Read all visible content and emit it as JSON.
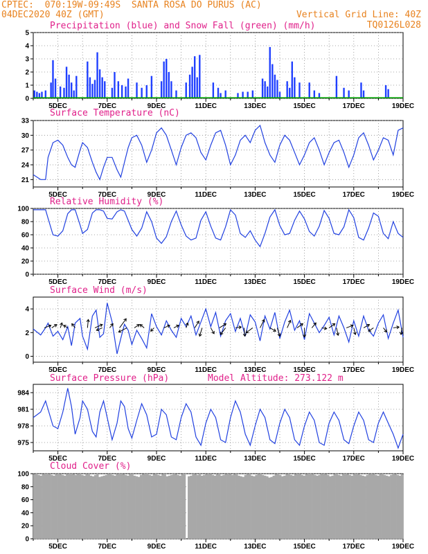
{
  "header": {
    "line1_left": "CPTEC:  070:19W-09:49S  SANTA ROSA DO PURUS (AC)",
    "line2_left": "04DEC2020 40Z (GMT)",
    "line2_right": "Vertical Grid Line: 40Z",
    "line3_right": "TQ0126L028"
  },
  "x_tick_labels": [
    "5DEC",
    "7DEC",
    "9DEC",
    "11DEC",
    "13DEC",
    "15DEC",
    "17DEC",
    "19DEC"
  ],
  "colors": {
    "precip": "#2040ff",
    "snow": "#00a000",
    "line": "#2040e0",
    "cloud": "#a8a8a8",
    "title": "#e0208a",
    "header": "#e8821e"
  },
  "chart_data": [
    {
      "type": "bar",
      "title": "Precipitation (blue) and Snow Fall (green) (mm/h)",
      "ylim": [
        0,
        5
      ],
      "yticks": [
        "0",
        "1",
        "2",
        "3",
        "4",
        "5"
      ],
      "xlim": [
        4.0,
        19.0
      ],
      "series": [
        {
          "name": "Precipitation",
          "x": [
            4.05,
            4.15,
            4.25,
            4.35,
            4.5,
            4.72,
            4.8,
            4.9,
            5.1,
            5.25,
            5.35,
            5.45,
            5.55,
            5.65,
            5.75,
            6.2,
            6.3,
            6.4,
            6.5,
            6.6,
            6.7,
            6.8,
            6.9,
            7.2,
            7.3,
            7.45,
            7.6,
            7.75,
            7.85,
            8.2,
            8.4,
            8.6,
            8.8,
            9.2,
            9.3,
            9.4,
            9.5,
            9.6,
            9.8,
            10.2,
            10.35,
            10.45,
            10.55,
            10.65,
            10.75,
            11.3,
            11.5,
            11.6,
            11.8,
            12.3,
            12.5,
            12.7,
            12.9,
            13.3,
            13.4,
            13.5,
            13.6,
            13.7,
            13.8,
            13.9,
            14.0,
            14.3,
            14.4,
            14.5,
            14.6,
            14.8,
            15.2,
            15.4,
            15.6,
            16.3,
            16.6,
            16.8,
            17.3,
            17.4,
            18.3,
            18.4
          ],
          "values": [
            0.6,
            0.5,
            0.4,
            0.5,
            0.6,
            1.2,
            2.9,
            1.5,
            0.9,
            0.8,
            2.4,
            1.8,
            1.2,
            0.6,
            1.7,
            2.8,
            1.6,
            1.1,
            1.4,
            3.5,
            2.2,
            1.6,
            1.3,
            0.8,
            2.0,
            1.3,
            1.0,
            0.9,
            1.5,
            1.2,
            0.8,
            1.0,
            1.7,
            1.3,
            2.8,
            3.0,
            2.0,
            1.3,
            0.6,
            1.2,
            1.8,
            2.4,
            3.2,
            1.6,
            3.3,
            1.2,
            0.8,
            0.4,
            0.6,
            0.4,
            0.5,
            0.5,
            0.6,
            1.5,
            1.3,
            0.9,
            3.9,
            2.6,
            1.8,
            1.4,
            0.5,
            1.3,
            0.8,
            2.8,
            1.6,
            1.2,
            1.2,
            0.6,
            0.4,
            1.7,
            0.8,
            0.6,
            1.2,
            0.6,
            1.0,
            0.7
          ]
        },
        {
          "name": "Snow Fall",
          "x": [
            4.0,
            19.0
          ],
          "values": [
            0,
            0
          ]
        }
      ]
    },
    {
      "type": "line",
      "title": "Surface Temperature (nC)",
      "ylim": [
        19.5,
        33
      ],
      "yticks": [
        "21",
        "24",
        "27",
        "30",
        "33"
      ],
      "x": [
        4.0,
        4.3,
        4.5,
        4.6,
        4.8,
        5.0,
        5.2,
        5.4,
        5.55,
        5.7,
        5.9,
        6.0,
        6.2,
        6.4,
        6.55,
        6.7,
        6.85,
        7.0,
        7.2,
        7.4,
        7.55,
        7.7,
        7.85,
        8.0,
        8.2,
        8.4,
        8.6,
        8.8,
        9.0,
        9.2,
        9.4,
        9.6,
        9.8,
        10.0,
        10.2,
        10.4,
        10.6,
        10.8,
        11.0,
        11.2,
        11.4,
        11.6,
        11.8,
        12.0,
        12.2,
        12.4,
        12.6,
        12.8,
        13.0,
        13.2,
        13.4,
        13.6,
        13.8,
        14.0,
        14.2,
        14.4,
        14.6,
        14.8,
        15.0,
        15.2,
        15.4,
        15.6,
        15.8,
        16.0,
        16.2,
        16.4,
        16.6,
        16.8,
        17.0,
        17.2,
        17.4,
        17.6,
        17.8,
        18.0,
        18.2,
        18.4,
        18.6,
        18.8,
        19.0
      ],
      "values": [
        22.0,
        21.0,
        21.0,
        25.5,
        28.5,
        29.0,
        28.0,
        25.5,
        24.0,
        23.5,
        27.0,
        28.5,
        27.5,
        24.5,
        22.5,
        21.0,
        23.5,
        25.5,
        25.5,
        23.0,
        21.5,
        24.5,
        27.5,
        29.5,
        30.0,
        28.0,
        24.5,
        27.0,
        30.5,
        31.5,
        30.0,
        27.0,
        24.0,
        27.5,
        30.0,
        30.5,
        29.5,
        26.5,
        25.0,
        28.0,
        30.5,
        31.0,
        28.0,
        24.0,
        26.0,
        29.0,
        30.0,
        28.5,
        31.0,
        32.0,
        28.5,
        26.0,
        24.5,
        28.0,
        30.0,
        29.0,
        26.5,
        24.0,
        26.0,
        28.5,
        29.5,
        27.0,
        24.0,
        26.5,
        28.5,
        29.0,
        26.5,
        23.5,
        26.0,
        29.5,
        30.5,
        28.0,
        25.0,
        27.0,
        29.5,
        29.0,
        26.0,
        31.0,
        31.5
      ]
    },
    {
      "type": "line",
      "title": "Relative Humidity (%)",
      "ylim": [
        0,
        100
      ],
      "yticks": [
        "0",
        "20",
        "40",
        "60",
        "80",
        "100"
      ],
      "x": [
        4.0,
        4.3,
        4.5,
        4.6,
        4.8,
        5.0,
        5.2,
        5.4,
        5.55,
        5.7,
        5.9,
        6.0,
        6.2,
        6.4,
        6.55,
        6.7,
        6.85,
        7.0,
        7.2,
        7.4,
        7.55,
        7.7,
        7.85,
        8.0,
        8.2,
        8.4,
        8.6,
        8.8,
        9.0,
        9.2,
        9.4,
        9.6,
        9.8,
        10.0,
        10.2,
        10.4,
        10.6,
        10.8,
        11.0,
        11.2,
        11.4,
        11.6,
        11.8,
        12.0,
        12.2,
        12.4,
        12.6,
        12.8,
        13.0,
        13.2,
        13.4,
        13.6,
        13.8,
        14.0,
        14.2,
        14.4,
        14.6,
        14.8,
        15.0,
        15.2,
        15.4,
        15.6,
        15.8,
        16.0,
        16.2,
        16.4,
        16.6,
        16.8,
        17.0,
        17.2,
        17.4,
        17.6,
        17.8,
        18.0,
        18.2,
        18.4,
        18.6,
        18.8,
        19.0
      ],
      "values": [
        98,
        98,
        98,
        85,
        60,
        58,
        66,
        92,
        98,
        98,
        75,
        62,
        68,
        93,
        98,
        98,
        96,
        85,
        84,
        95,
        98,
        96,
        82,
        68,
        58,
        70,
        95,
        80,
        55,
        47,
        57,
        80,
        96,
        75,
        58,
        52,
        55,
        82,
        95,
        73,
        55,
        52,
        72,
        98,
        90,
        62,
        56,
        66,
        52,
        42,
        62,
        87,
        98,
        74,
        60,
        62,
        82,
        96,
        84,
        65,
        58,
        73,
        97,
        85,
        62,
        60,
        72,
        98,
        86,
        56,
        52,
        70,
        93,
        88,
        62,
        54,
        80,
        62,
        56
      ]
    },
    {
      "type": "line",
      "title": "Surface Wind (m/s)",
      "ylim": [
        -0.5,
        5
      ],
      "yticks": [
        "0",
        "2",
        "4"
      ],
      "x": [
        4.0,
        4.3,
        4.5,
        4.6,
        4.8,
        5.0,
        5.2,
        5.4,
        5.55,
        5.7,
        5.9,
        6.0,
        6.2,
        6.4,
        6.55,
        6.7,
        6.85,
        7.0,
        7.2,
        7.4,
        7.55,
        7.7,
        7.85,
        8.0,
        8.2,
        8.4,
        8.6,
        8.8,
        9.0,
        9.2,
        9.4,
        9.6,
        9.8,
        10.0,
        10.2,
        10.4,
        10.6,
        10.8,
        11.0,
        11.2,
        11.4,
        11.6,
        11.8,
        12.0,
        12.2,
        12.4,
        12.6,
        12.8,
        13.0,
        13.2,
        13.4,
        13.6,
        13.8,
        14.0,
        14.2,
        14.4,
        14.6,
        14.8,
        15.0,
        15.2,
        15.4,
        15.6,
        15.8,
        16.0,
        16.2,
        16.4,
        16.6,
        16.8,
        17.0,
        17.2,
        17.4,
        17.6,
        17.8,
        18.0,
        18.2,
        18.4,
        18.6,
        18.8,
        19.0
      ],
      "values": [
        2.3,
        1.8,
        2.4,
        2.8,
        1.7,
        2.1,
        1.4,
        2.5,
        0.9,
        2.8,
        3.2,
        1.7,
        0.6,
        3.4,
        3.9,
        1.6,
        1.9,
        4.5,
        2.9,
        0.2,
        1.5,
        2.7,
        2.2,
        1.0,
        2.2,
        1.5,
        0.7,
        3.6,
        2.5,
        1.8,
        3.0,
        2.2,
        1.6,
        3.2,
        2.5,
        3.4,
        1.8,
        2.9,
        4.0,
        2.5,
        3.7,
        1.7,
        3.0,
        3.6,
        2.1,
        3.2,
        1.7,
        3.5,
        2.9,
        1.3,
        3.4,
        2.3,
        3.7,
        1.5,
        2.9,
        3.9,
        2.2,
        3.0,
        1.4,
        3.6,
        2.8,
        2.0,
        2.6,
        3.3,
        1.8,
        3.4,
        2.4,
        1.2,
        3.0,
        1.7,
        3.4,
        2.2,
        1.7,
        2.8,
        3.5,
        1.5,
        2.8,
        3.9,
        1.6
      ],
      "vectors": [
        {
          "x": 4.45,
          "u": 0.8,
          "v": 0.3
        },
        {
          "x": 4.75,
          "u": 0.6,
          "v": 0.4
        },
        {
          "x": 5.1,
          "u": 0.2,
          "v": 0.6
        },
        {
          "x": 5.4,
          "u": -0.5,
          "v": 0.3
        },
        {
          "x": 5.7,
          "u": -0.4,
          "v": 0.5
        },
        {
          "x": 6.2,
          "u": 0.1,
          "v": 1.0
        },
        {
          "x": 6.5,
          "u": 0.9,
          "v": 0.4
        },
        {
          "x": 6.8,
          "u": -0.7,
          "v": -0.3
        },
        {
          "x": 7.1,
          "u": 0.4,
          "v": 0.5
        },
        {
          "x": 7.5,
          "u": 0.8,
          "v": 1.1
        },
        {
          "x": 7.8,
          "u": -1.0,
          "v": -0.5
        },
        {
          "x": 8.1,
          "u": 0.6,
          "v": 0.4
        },
        {
          "x": 8.5,
          "u": -0.5,
          "v": 0.4
        },
        {
          "x": 8.9,
          "u": -0.4,
          "v": -0.4
        },
        {
          "x": 9.3,
          "u": 0.7,
          "v": 0.3
        },
        {
          "x": 9.7,
          "u": 0.6,
          "v": 0.3
        },
        {
          "x": 10.2,
          "u": 0.2,
          "v": 0.6
        },
        {
          "x": 10.55,
          "u": 0.5,
          "v": 0.8
        },
        {
          "x": 10.85,
          "u": -0.3,
          "v": -1.0
        },
        {
          "x": 11.2,
          "u": 0.4,
          "v": -0.7
        },
        {
          "x": 11.55,
          "u": 0.8,
          "v": 0.5
        },
        {
          "x": 11.8,
          "u": -0.6,
          "v": -0.8
        },
        {
          "x": 12.2,
          "u": 0.7,
          "v": 0.1
        },
        {
          "x": 12.55,
          "u": 0.1,
          "v": -1.0
        },
        {
          "x": 12.9,
          "u": -0.8,
          "v": -0.6
        },
        {
          "x": 13.2,
          "u": 0.5,
          "v": 1.0
        },
        {
          "x": 13.6,
          "u": 0.7,
          "v": -0.4
        },
        {
          "x": 13.9,
          "u": 0.3,
          "v": -1.0
        },
        {
          "x": 14.3,
          "u": 0.4,
          "v": 0.9
        },
        {
          "x": 14.7,
          "u": 0.7,
          "v": 0.5
        },
        {
          "x": 15.0,
          "u": 0.0,
          "v": -1.1
        },
        {
          "x": 15.3,
          "u": 0.5,
          "v": 0.6
        },
        {
          "x": 15.7,
          "u": 0.6,
          "v": -0.1
        },
        {
          "x": 16.0,
          "u": 0.7,
          "v": 0.5
        },
        {
          "x": 16.3,
          "u": 0.2,
          "v": -0.9
        },
        {
          "x": 16.7,
          "u": 0.8,
          "v": 0.3
        },
        {
          "x": 17.0,
          "u": 0.2,
          "v": -0.8
        },
        {
          "x": 17.4,
          "u": 0.7,
          "v": 0.4
        },
        {
          "x": 17.8,
          "u": -0.6,
          "v": -0.4
        },
        {
          "x": 18.2,
          "u": 0.4,
          "v": -0.5
        },
        {
          "x": 18.6,
          "u": 0.7,
          "v": 0.1
        },
        {
          "x": 18.95,
          "u": -0.1,
          "v": -0.8
        }
      ]
    },
    {
      "type": "line",
      "title": "Surface Pressure (hPa)",
      "annotation": "Model Altitude: 273.122 m",
      "ylim": [
        973.5,
        985.5
      ],
      "yticks": [
        "975",
        "978",
        "981",
        "984"
      ],
      "x": [
        4.0,
        4.3,
        4.5,
        4.6,
        4.8,
        5.0,
        5.2,
        5.4,
        5.55,
        5.7,
        5.9,
        6.0,
        6.2,
        6.4,
        6.55,
        6.7,
        6.85,
        7.0,
        7.2,
        7.4,
        7.55,
        7.7,
        7.85,
        8.0,
        8.2,
        8.4,
        8.6,
        8.8,
        9.0,
        9.2,
        9.4,
        9.6,
        9.8,
        10.0,
        10.2,
        10.4,
        10.6,
        10.8,
        11.0,
        11.2,
        11.4,
        11.6,
        11.8,
        12.0,
        12.2,
        12.4,
        12.6,
        12.8,
        13.0,
        13.2,
        13.4,
        13.6,
        13.8,
        14.0,
        14.2,
        14.4,
        14.6,
        14.8,
        15.0,
        15.2,
        15.4,
        15.6,
        15.8,
        16.0,
        16.2,
        16.4,
        16.6,
        16.8,
        17.0,
        17.2,
        17.4,
        17.6,
        17.8,
        18.0,
        18.2,
        18.4,
        18.6,
        18.8,
        19.0
      ],
      "values": [
        979.5,
        980.5,
        982.5,
        981.0,
        978.0,
        977.5,
        980.5,
        984.8,
        981.5,
        976.5,
        979.5,
        982.5,
        981.0,
        977.0,
        976.0,
        980.5,
        982.5,
        979.5,
        975.5,
        978.5,
        982.5,
        981.5,
        977.5,
        975.8,
        979.0,
        982.0,
        980.0,
        976.0,
        976.5,
        981.0,
        980.0,
        976.0,
        975.5,
        979.5,
        982.0,
        980.5,
        976.0,
        974.5,
        978.5,
        981.0,
        979.5,
        975.5,
        975.0,
        979.5,
        982.5,
        980.5,
        976.5,
        974.5,
        978.0,
        981.0,
        979.5,
        975.5,
        974.8,
        978.5,
        981.0,
        979.5,
        975.5,
        974.5,
        978.0,
        980.5,
        979.0,
        975.0,
        974.5,
        978.5,
        980.5,
        979.0,
        975.5,
        974.8,
        978.0,
        980.5,
        979.0,
        975.5,
        975.0,
        978.5,
        980.5,
        978.5,
        976.5,
        974.0,
        976.5
      ]
    },
    {
      "type": "bar",
      "title": "Cloud Cover (%)",
      "ylim": [
        0,
        100
      ],
      "yticks": [
        "0",
        "20",
        "40",
        "60",
        "80",
        "100"
      ],
      "x_range": [
        4.0,
        19.0
      ],
      "values": [
        99,
        100,
        98,
        97,
        99,
        100,
        100,
        99,
        98,
        97,
        99,
        100,
        99,
        98,
        97,
        99,
        100,
        100,
        99,
        98,
        99,
        100,
        98,
        97,
        99,
        100,
        97,
        96,
        98,
        100,
        95,
        96,
        97,
        98,
        99,
        100,
        98,
        97,
        99,
        100,
        100,
        99,
        98,
        97,
        99,
        100,
        97,
        96,
        95,
        98,
        99,
        100,
        100,
        98,
        97,
        99,
        100,
        98,
        97,
        99,
        100,
        96,
        97,
        98,
        100,
        99,
        98,
        97,
        99,
        100,
        0,
        96,
        97,
        100,
        99,
        98,
        100,
        97,
        98,
        99,
        100,
        99,
        98,
        97,
        99,
        100,
        97,
        98,
        99,
        100,
        99,
        98,
        99,
        100,
        97,
        96,
        95,
        98,
        99,
        100,
        97,
        96,
        98,
        99,
        100,
        98,
        97,
        96,
        94,
        95,
        97,
        99,
        100,
        98,
        96,
        97,
        99,
        100,
        98,
        97,
        99,
        100,
        99,
        98,
        97,
        99,
        100,
        100,
        99,
        98,
        97,
        98,
        99,
        100,
        99,
        98,
        96,
        97,
        99,
        100,
        98,
        97,
        99,
        100,
        99,
        98,
        97,
        99,
        100,
        99,
        98,
        97,
        96,
        98,
        99,
        100,
        99,
        98,
        97,
        99,
        100,
        98,
        97,
        96,
        98,
        100,
        99,
        98,
        97,
        99
      ]
    }
  ]
}
